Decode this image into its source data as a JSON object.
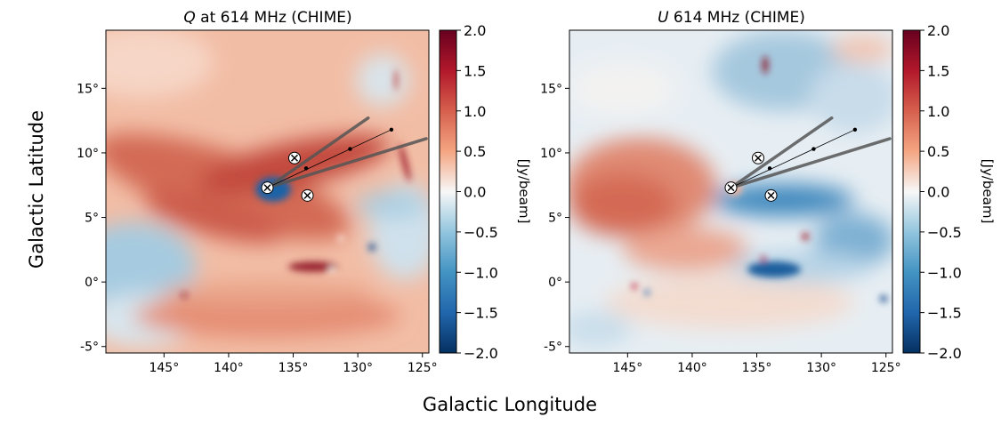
{
  "figure": {
    "xlabel": "Galactic Longitude",
    "ylabel": "Galactic Latitude"
  },
  "chart_data": [
    {
      "type": "heatmap",
      "title_italic": "Q",
      "title_rest": " at 614 MHz (CHIME)",
      "xlim": [
        149.5,
        124.5
      ],
      "ylim": [
        -5.5,
        19.5
      ],
      "xticks": [
        145,
        140,
        135,
        130,
        125
      ],
      "xtick_labels": [
        "145°",
        "140°",
        "135°",
        "130°",
        "125°"
      ],
      "yticks": [
        -5,
        0,
        5,
        10,
        15
      ],
      "ytick_labels": [
        "-5°",
        "0°",
        "5°",
        "10°",
        "15°"
      ],
      "colorbar": {
        "label": "[Jy/beam]",
        "range": [
          -2.0,
          2.0
        ],
        "ticks": [
          2.0,
          1.5,
          1.0,
          0.5,
          0.0,
          -0.5,
          -1.0,
          -1.5,
          -2.0
        ],
        "tick_labels": [
          "2.0",
          "1.5",
          "1.0",
          "0.5",
          "0.0",
          "−0.5",
          "−1.0",
          "−1.5",
          "−2.0"
        ],
        "colormap": "RdBu_r"
      },
      "markers_x": [
        {
          "l": 137.0,
          "b": 7.3
        },
        {
          "l": 134.9,
          "b": 9.6
        },
        {
          "l": 133.9,
          "b": 6.7
        }
      ],
      "dots": [
        {
          "l": 134.0,
          "b": 8.8
        },
        {
          "l": 130.6,
          "b": 10.3
        },
        {
          "l": 127.4,
          "b": 11.8
        }
      ],
      "cone_lines": [
        {
          "from": {
            "l": 137.0,
            "b": 7.3
          },
          "to": {
            "l": 129.2,
            "b": 12.7
          }
        },
        {
          "from": {
            "l": 137.0,
            "b": 7.3
          },
          "to": {
            "l": 124.7,
            "b": 11.1
          }
        }
      ],
      "thin_line": {
        "from": {
          "l": 137.0,
          "b": 7.3
        },
        "to": {
          "l": 127.4,
          "b": 11.8
        }
      }
    },
    {
      "type": "heatmap",
      "title_italic": "U",
      "title_rest": " 614 MHz (CHIME)",
      "xlim": [
        149.5,
        124.5
      ],
      "ylim": [
        -5.5,
        19.5
      ],
      "xticks": [
        145,
        140,
        135,
        130,
        125
      ],
      "xtick_labels": [
        "145°",
        "140°",
        "135°",
        "130°",
        "125°"
      ],
      "yticks": [
        -5,
        0,
        5,
        10,
        15
      ],
      "ytick_labels": [
        "-5°",
        "0°",
        "5°",
        "10°",
        "15°"
      ],
      "colorbar": {
        "label": "[Jy/beam]",
        "range": [
          -2.0,
          2.0
        ],
        "ticks": [
          2.0,
          1.5,
          1.0,
          0.5,
          0.0,
          -0.5,
          -1.0,
          -1.5,
          -2.0
        ],
        "tick_labels": [
          "2.0",
          "1.5",
          "1.0",
          "0.5",
          "0.0",
          "−0.5",
          "−1.0",
          "−1.5",
          "−2.0"
        ],
        "colormap": "RdBu_r"
      },
      "markers_x": [
        {
          "l": 137.0,
          "b": 7.3
        },
        {
          "l": 134.9,
          "b": 9.6
        },
        {
          "l": 133.9,
          "b": 6.7
        }
      ],
      "dots": [
        {
          "l": 134.0,
          "b": 8.8
        },
        {
          "l": 130.6,
          "b": 10.3
        },
        {
          "l": 127.4,
          "b": 11.8
        }
      ],
      "cone_lines": [
        {
          "from": {
            "l": 137.0,
            "b": 7.3
          },
          "to": {
            "l": 129.2,
            "b": 12.7
          }
        },
        {
          "from": {
            "l": 137.0,
            "b": 7.3
          },
          "to": {
            "l": 124.7,
            "b": 11.1
          }
        }
      ],
      "thin_line": {
        "from": {
          "l": 137.0,
          "b": 7.3
        },
        "to": {
          "l": 127.4,
          "b": 11.8
        }
      }
    }
  ]
}
